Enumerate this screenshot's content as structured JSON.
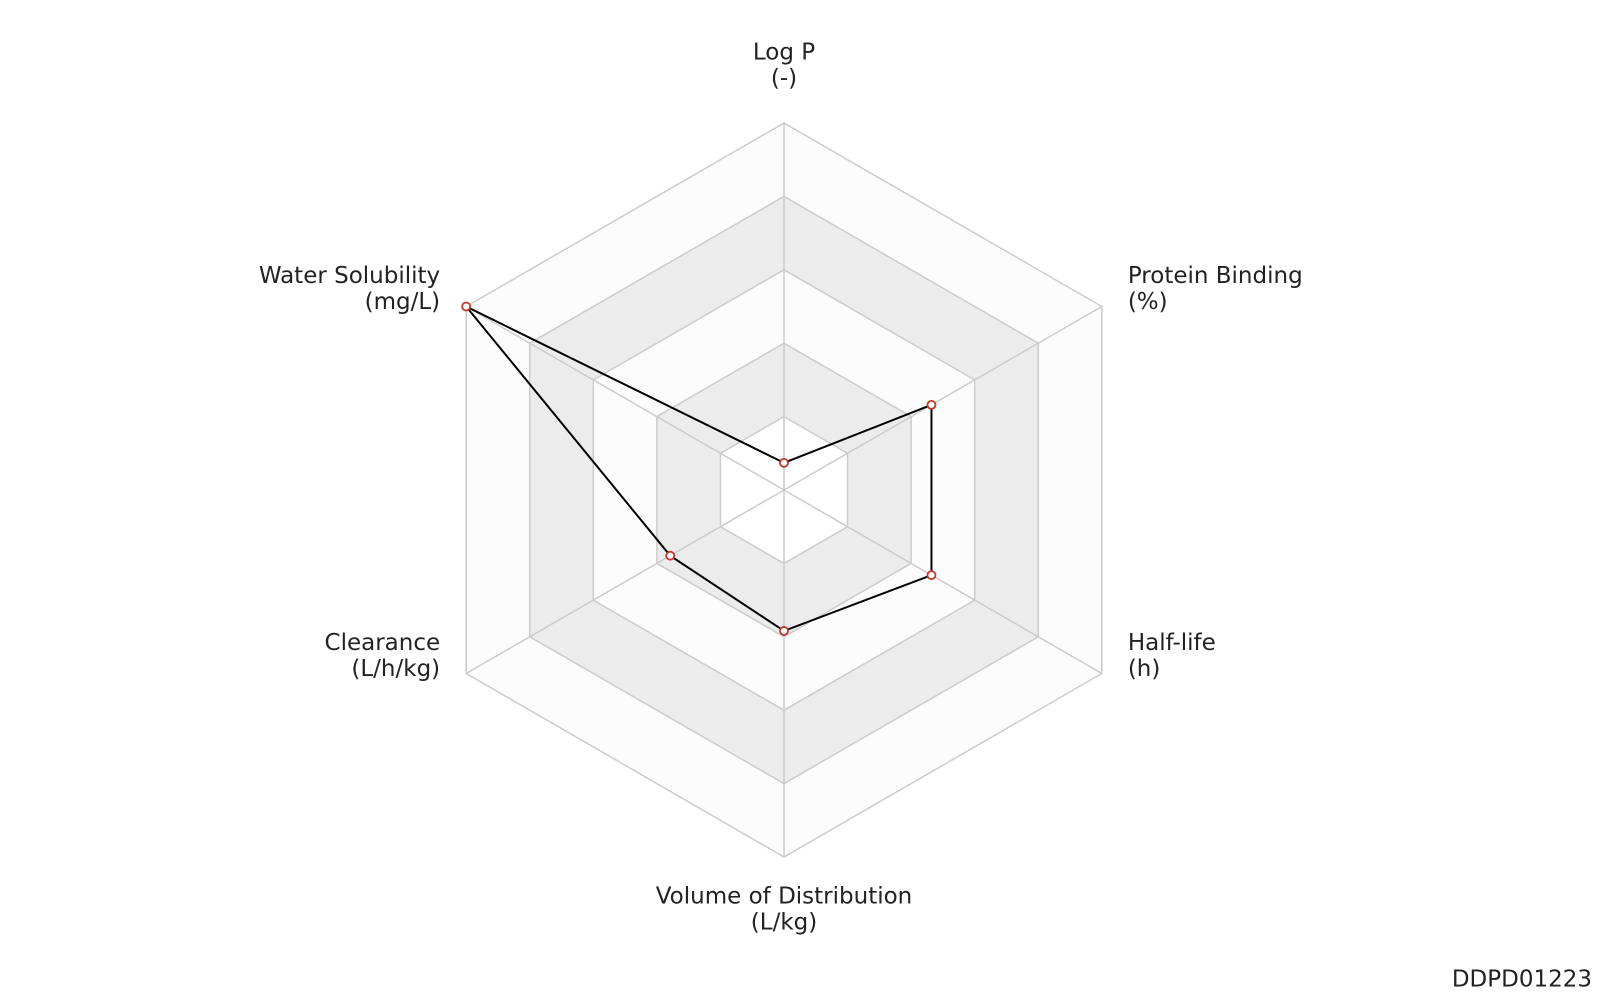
{
  "chart_data": {
    "type": "radar",
    "axes": [
      {
        "name": "Log P",
        "unit": "(-)"
      },
      {
        "name": "Protein Binding",
        "unit": "(%)"
      },
      {
        "name": "Half-life",
        "unit": "(h)"
      },
      {
        "name": "Volume of Distribution",
        "unit": "(L/kg)"
      },
      {
        "name": "Clearance",
        "unit": "(L/h/kg)"
      },
      {
        "name": "Water Solubility",
        "unit": "(mg/L)"
      }
    ],
    "values": [
      0.37,
      2.32,
      2.32,
      1.92,
      1.79,
      5.0
    ],
    "rlim": [
      0,
      5
    ],
    "rticks": [
      1,
      2,
      3,
      4,
      5
    ],
    "line_color": "#000000",
    "marker_color": "#c0392b",
    "grid": true
  },
  "footer": {
    "id": "DDPD01223"
  }
}
